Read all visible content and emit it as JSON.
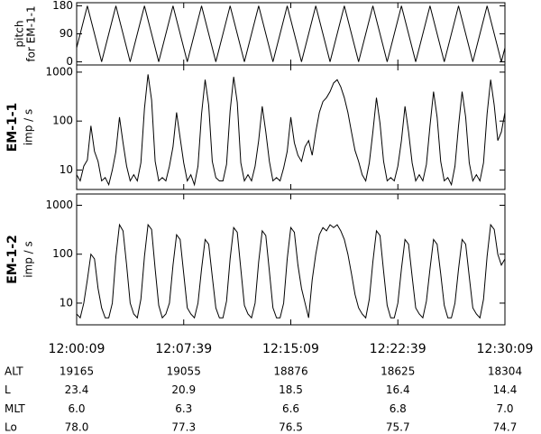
{
  "chart_data": {
    "type": "line",
    "xlim": [
      43209,
      45009
    ],
    "xticks": [
      {
        "value": 43209,
        "label": "12:00:09"
      },
      {
        "value": 43659,
        "label": "12:07:39"
      },
      {
        "value": 44109,
        "label": "12:15:09"
      },
      {
        "value": 44559,
        "label": "12:22:39"
      },
      {
        "value": 45009,
        "label": "12:30:09"
      }
    ],
    "x": [
      43209,
      43224,
      43239,
      43254,
      43269,
      43284,
      43299,
      43314,
      43329,
      43344,
      43359,
      43374,
      43389,
      43404,
      43419,
      43434,
      43449,
      43464,
      43479,
      43494,
      43509,
      43524,
      43539,
      43554,
      43569,
      43584,
      43599,
      43614,
      43629,
      43644,
      43659,
      43674,
      43689,
      43704,
      43719,
      43734,
      43749,
      43764,
      43779,
      43794,
      43809,
      43824,
      43839,
      43854,
      43869,
      43884,
      43899,
      43914,
      43929,
      43944,
      43959,
      43974,
      43989,
      44004,
      44019,
      44034,
      44049,
      44064,
      44079,
      44094,
      44109,
      44124,
      44139,
      44154,
      44169,
      44184,
      44199,
      44214,
      44229,
      44244,
      44259,
      44274,
      44289,
      44304,
      44319,
      44334,
      44349,
      44364,
      44379,
      44394,
      44409,
      44424,
      44439,
      44454,
      44469,
      44484,
      44499,
      44514,
      44529,
      44544,
      44559,
      44574,
      44589,
      44604,
      44619,
      44634,
      44649,
      44664,
      44679,
      44694,
      44709,
      44724,
      44739,
      44754,
      44769,
      44784,
      44799,
      44814,
      44829,
      44844,
      44859,
      44874,
      44889,
      44904,
      44919,
      44934,
      44949,
      44964,
      44979,
      44994,
      45009
    ],
    "panels": [
      {
        "ylabel": [
          "pitch",
          "for EM-1-1"
        ],
        "log": false,
        "ylim": [
          -10,
          190
        ],
        "yticks": [
          0,
          90,
          180
        ],
        "series": [
          {
            "color": "#000000",
            "x": [
              43209,
              43254,
              43314,
              43374,
              43434,
              43494,
              43554,
              43614,
              43674,
              43734,
              43794,
              43854,
              43914,
              43974,
              44034,
              44094,
              44154,
              44214,
              44274,
              44334,
              44394,
              44454,
              44514,
              44574,
              44634,
              44694,
              44754,
              44814,
              44874,
              44934,
              44994,
              45009
            ],
            "values": [
              45,
              180,
              0,
              180,
              0,
              180,
              0,
              180,
              0,
              180,
              0,
              180,
              0,
              180,
              0,
              180,
              0,
              180,
              0,
              180,
              0,
              180,
              0,
              180,
              0,
              180,
              0,
              180,
              0,
              180,
              0,
              45
            ]
          }
        ]
      },
      {
        "ylabel": [
          "EM-1-1",
          "imp / s"
        ],
        "log": true,
        "ylim": [
          4,
          1400
        ],
        "yticks": [
          10,
          100,
          1000
        ],
        "series": [
          {
            "color": "#000000",
            "values": [
              8,
              6,
              12,
              16,
              80,
              24,
              15,
              6,
              7,
              5,
              10,
              24,
              120,
              36,
              12,
              6,
              8,
              6,
              14,
              180,
              900,
              270,
              15,
              6,
              7,
              6,
              12,
              30,
              150,
              45,
              14,
              6,
              8,
              5,
              12,
              140,
              700,
              210,
              15,
              7,
              6,
              6,
              13,
              160,
              800,
              240,
              14,
              6,
              8,
              6,
              12,
              40,
              200,
              60,
              15,
              6,
              7,
              6,
              11,
              24,
              120,
              36,
              20,
              15,
              30,
              40,
              20,
              60,
              150,
              250,
              300,
              400,
              600,
              700,
              500,
              300,
              150,
              60,
              25,
              15,
              8,
              6,
              14,
              60,
              300,
              90,
              15,
              6,
              7,
              6,
              12,
              40,
              200,
              60,
              14,
              6,
              8,
              6,
              13,
              80,
              400,
              120,
              15,
              6,
              7,
              5,
              12,
              80,
              400,
              120,
              14,
              6,
              8,
              6,
              14,
              140,
              700,
              210,
              40,
              60,
              150
            ]
          }
        ]
      },
      {
        "ylabel": [
          "EM-1-2",
          "imp / s"
        ],
        "log": true,
        "ylim": [
          3.6,
          1700
        ],
        "yticks": [
          10,
          100,
          1000
        ],
        "series": [
          {
            "color": "#000000",
            "values": [
              6,
              5,
              10,
              30,
              100,
              80,
              20,
              8,
              5,
              5,
              10,
              90,
              400,
              300,
              60,
              10,
              6,
              5,
              12,
              90,
              400,
              320,
              50,
              9,
              5,
              6,
              10,
              60,
              250,
              200,
              40,
              8,
              6,
              5,
              10,
              50,
              200,
              160,
              35,
              8,
              5,
              5,
              11,
              80,
              350,
              280,
              50,
              9,
              6,
              5,
              10,
              70,
              300,
              240,
              45,
              8,
              5,
              5,
              10,
              80,
              350,
              280,
              60,
              20,
              10,
              5,
              30,
              100,
              250,
              350,
              300,
              400,
              350,
              400,
              300,
              200,
              100,
              40,
              15,
              8,
              6,
              5,
              12,
              70,
              300,
              240,
              45,
              9,
              5,
              5,
              10,
              50,
              200,
              160,
              35,
              8,
              6,
              5,
              11,
              50,
              200,
              160,
              40,
              9,
              5,
              5,
              10,
              50,
              200,
              160,
              35,
              8,
              6,
              5,
              12,
              90,
              400,
              320,
              100,
              60,
              80
            ]
          }
        ]
      }
    ]
  },
  "table": {
    "rows": [
      {
        "label": "ALT",
        "cells": [
          "19165",
          "19055",
          "18876",
          "18625",
          "18304"
        ]
      },
      {
        "label": "L",
        "cells": [
          "23.4",
          "20.9",
          "18.5",
          "16.4",
          "14.4"
        ]
      },
      {
        "label": "MLT",
        "cells": [
          "6.0",
          "6.3",
          "6.6",
          "6.8",
          "7.0"
        ]
      },
      {
        "label": "Lo",
        "cells": [
          "78.0",
          "77.3",
          "76.5",
          "75.7",
          "74.7"
        ]
      }
    ]
  }
}
